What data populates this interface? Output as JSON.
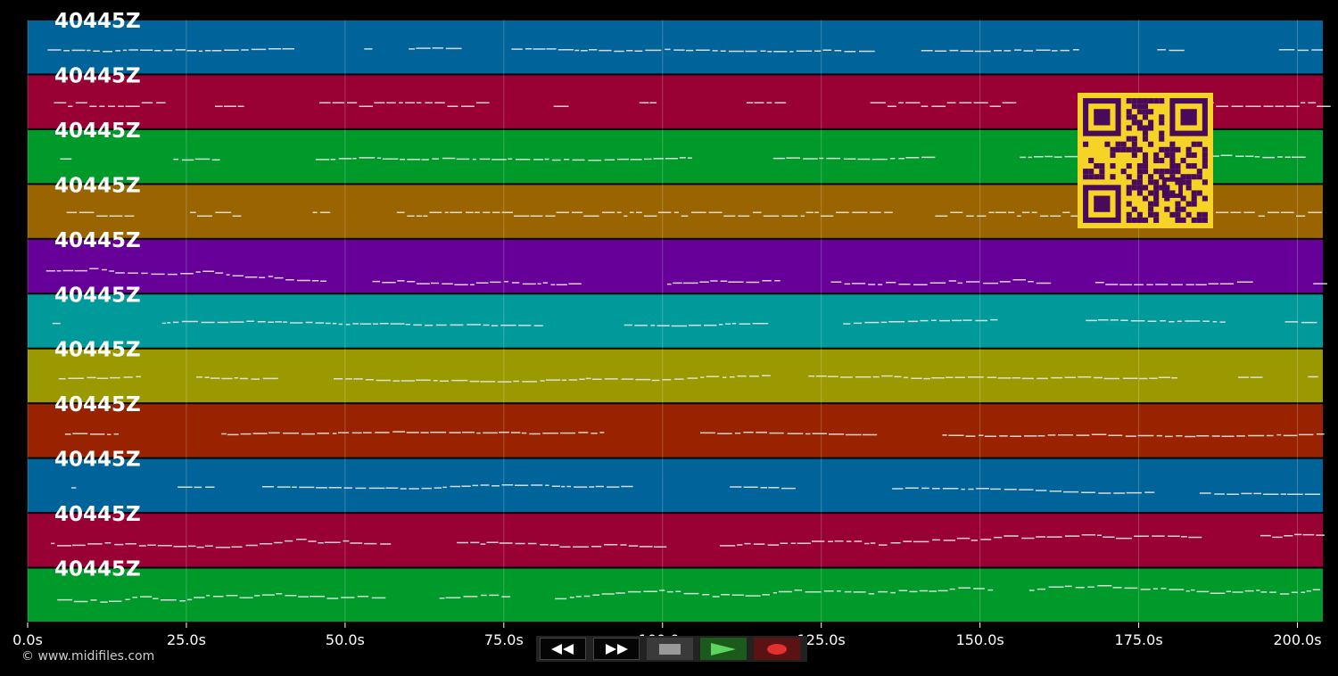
{
  "tracks": [
    {
      "label": "40445Z",
      "color": "#00649a"
    },
    {
      "label": "40445Z",
      "color": "#990033"
    },
    {
      "label": "40445Z",
      "color": "#009a2a"
    },
    {
      "label": "40445Z",
      "color": "#9a6400"
    },
    {
      "label": "40445Z",
      "color": "#660099"
    },
    {
      "label": "40445Z",
      "color": "#009a9a"
    },
    {
      "label": "40445Z",
      "color": "#9a9a00"
    },
    {
      "label": "40445Z",
      "color": "#992200"
    },
    {
      "label": "40445Z",
      "color": "#00649a"
    },
    {
      "label": "40445Z",
      "color": "#990033"
    },
    {
      "label": "40445Z",
      "color": "#009a2a"
    }
  ],
  "time_axis": {
    "max_seconds": 204,
    "ticks": [
      "0.0s",
      "25.0s",
      "50.0s",
      "75.0s",
      "100.0s",
      "125.0s",
      "150.0s",
      "175.0s",
      "200.0s"
    ],
    "tick_values": [
      0,
      25,
      50,
      75,
      100,
      125,
      150,
      175,
      200
    ]
  },
  "controls": {
    "rewind": "rewind-icon",
    "fast_forward": "fast-forward-icon",
    "stop": "stop-icon",
    "play": "play-icon",
    "record": "record-icon"
  },
  "copyright": "© www.midifiles.com",
  "qr": {
    "fg": "#4a0a5a",
    "bg": "#f5d327"
  }
}
